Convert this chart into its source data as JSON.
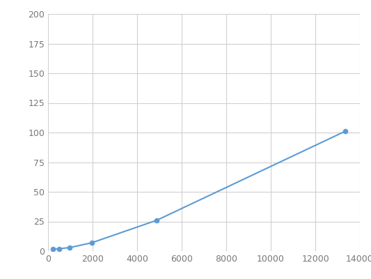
{
  "x": [
    195,
    488,
    975,
    1950,
    4875,
    13333
  ],
  "y": [
    1.5,
    2.0,
    3.0,
    7.0,
    26.0,
    101.0
  ],
  "line_color": "#5b9bd5",
  "marker_color": "#5b9bd5",
  "marker_size": 5,
  "line_width": 1.5,
  "xlim": [
    0,
    14000
  ],
  "ylim": [
    0,
    200
  ],
  "xticks": [
    0,
    2000,
    4000,
    6000,
    8000,
    10000,
    12000,
    14000
  ],
  "yticks": [
    0,
    25,
    50,
    75,
    100,
    125,
    150,
    175,
    200
  ],
  "grid_color": "#d0d0d0",
  "background_color": "#ffffff",
  "fig_background_color": "#ffffff"
}
